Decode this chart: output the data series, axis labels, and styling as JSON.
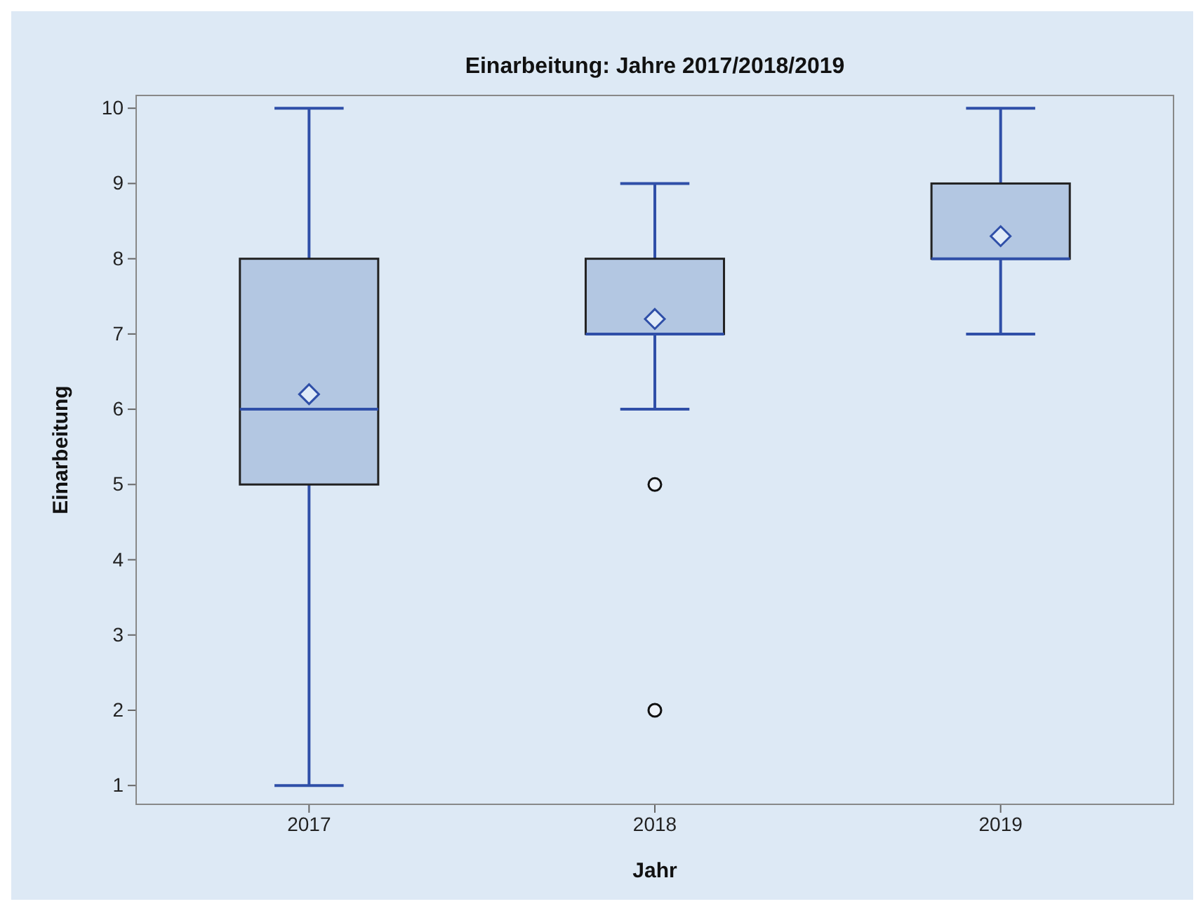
{
  "chart_data": {
    "type": "box",
    "title": "Einarbeitung: Jahre 2017/2018/2019",
    "xlabel": "Jahr",
    "ylabel": "Einarbeitung",
    "categories": [
      "2017",
      "2018",
      "2019"
    ],
    "series": [
      {
        "color": "#b3c7e2",
        "boxes": [
          {
            "low": 1,
            "q1": 5,
            "median": 6,
            "q3": 8,
            "high": 10,
            "mean": 6.2
          },
          {
            "low": 6,
            "q1": 7,
            "median": 7,
            "q3": 8,
            "high": 9,
            "mean": 7.2,
            "outliers": [
              5,
              2
            ]
          },
          {
            "low": 7,
            "q1": 8,
            "median": 8,
            "q3": 9,
            "high": 10,
            "mean": 8.3
          }
        ]
      }
    ],
    "ylim": [
      0.75,
      10.17
    ],
    "yticks": [
      1,
      2,
      3,
      4,
      5,
      6,
      7,
      8,
      9,
      10
    ],
    "grid": false,
    "marker": "diamond"
  }
}
